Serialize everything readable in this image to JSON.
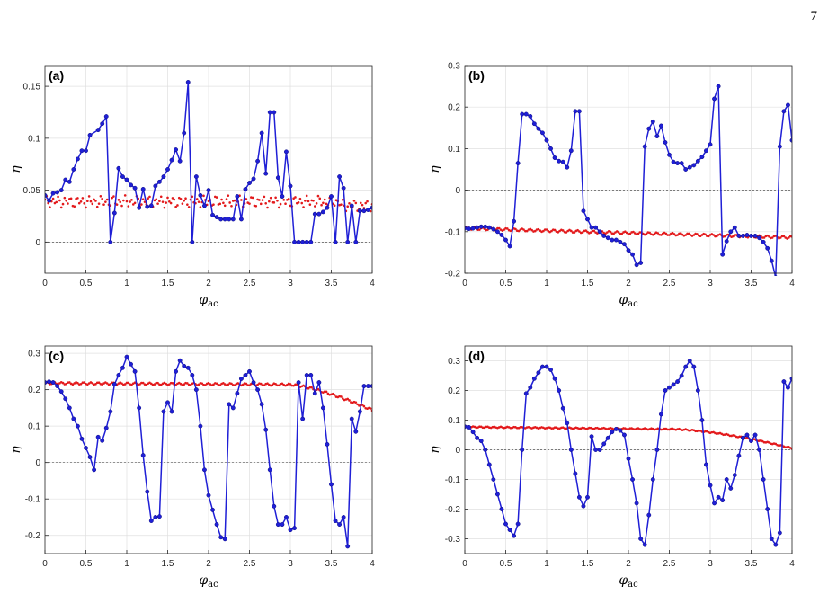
{
  "page_number": "7",
  "colors": {
    "series_blue": "#1f1fd6",
    "series_red": "#e31a1c",
    "grid": "#e0e0e0",
    "axes": "#262626"
  },
  "chart_data": [
    {
      "type": "line",
      "panel_label": "(a)",
      "xlabel": "φac",
      "ylabel": "η",
      "xlim": [
        0,
        4
      ],
      "ylim": [
        -0.03,
        0.17
      ],
      "xticks": [
        0,
        0.5,
        1,
        1.5,
        2,
        2.5,
        3,
        3.5,
        4
      ],
      "yticks": [
        0,
        0.05,
        0.1,
        0.15
      ],
      "zero_line": true,
      "grid": true,
      "series": [
        {
          "style": "blue-line-markers",
          "x": [
            0,
            0.05,
            0.1,
            0.15,
            0.2,
            0.25,
            0.3,
            0.35,
            0.4,
            0.45,
            0.5,
            0.55,
            0.65,
            0.7,
            0.75,
            0.8,
            0.85,
            0.9,
            0.95,
            1,
            1.05,
            1.1,
            1.15,
            1.2,
            1.25,
            1.3,
            1.35,
            1.4,
            1.45,
            1.5,
            1.55,
            1.6,
            1.65,
            1.7,
            1.75,
            1.8,
            1.85,
            1.9,
            1.95,
            2,
            2.05,
            2.1,
            2.15,
            2.2,
            2.25,
            2.3,
            2.35,
            2.4,
            2.45,
            2.5,
            2.55,
            2.6,
            2.65,
            2.7,
            2.75,
            2.8,
            2.85,
            2.9,
            2.95,
            3,
            3.05,
            3.1,
            3.15,
            3.2,
            3.25,
            3.3,
            3.35,
            3.4,
            3.45,
            3.5,
            3.55,
            3.6,
            3.65,
            3.7,
            3.75,
            3.8,
            3.85,
            3.9,
            3.95,
            4
          ],
          "y": [
            0.045,
            0.04,
            0.047,
            0.048,
            0.05,
            0.06,
            0.058,
            0.07,
            0.08,
            0.088,
            0.088,
            0.103,
            0.108,
            0.114,
            0.121,
            0.0,
            0.028,
            0.071,
            0.063,
            0.06,
            0.055,
            0.052,
            0.033,
            0.051,
            0.034,
            0.035,
            0.054,
            0.058,
            0.063,
            0.07,
            0.079,
            0.089,
            0.078,
            0.105,
            0.154,
            0.0,
            0.063,
            0.045,
            0.035,
            0.05,
            0.026,
            0.024,
            0.022,
            0.022,
            0.022,
            0.022,
            0.044,
            0.022,
            0.051,
            0.057,
            0.061,
            0.078,
            0.105,
            0.066,
            0.125,
            0.125,
            0.062,
            0.044,
            0.087,
            0.054,
            0.0,
            0.0,
            0.0,
            0.0,
            0.0,
            0.027,
            0.027,
            0.029,
            0.033,
            0.044,
            0.0,
            0.063,
            0.052,
            0.0,
            0.035,
            0.0,
            0.03,
            0.03,
            0.031,
            0.033
          ]
        }
      ]
    },
    {
      "type": "line",
      "panel_label": "(b)",
      "xlabel": "φac",
      "ylabel": "η",
      "xlim": [
        0,
        4
      ],
      "ylim": [
        -0.2,
        0.3
      ],
      "xticks": [
        0,
        0.5,
        1,
        1.5,
        2,
        2.5,
        3,
        3.5,
        4
      ],
      "yticks": [
        -0.2,
        -0.1,
        0,
        0.1,
        0.2,
        0.3
      ],
      "zero_line": true,
      "grid": true
    },
    {
      "type": "line",
      "panel_label": "(c)",
      "xlabel": "φac",
      "ylabel": "η",
      "xlim": [
        0,
        4
      ],
      "ylim": [
        -0.25,
        0.32
      ],
      "xticks": [
        0,
        0.5,
        1,
        1.5,
        2,
        2.5,
        3,
        3.5,
        4
      ],
      "yticks": [
        -0.2,
        -0.1,
        0,
        0.1,
        0.2,
        0.3
      ],
      "zero_line": true,
      "grid": true
    },
    {
      "type": "line",
      "panel_label": "(d)",
      "xlabel": "φac",
      "ylabel": "η",
      "xlim": [
        0,
        4
      ],
      "ylim": [
        -0.35,
        0.35
      ],
      "xticks": [
        0,
        0.5,
        1,
        1.5,
        2,
        2.5,
        3,
        3.5,
        4
      ],
      "yticks": [
        -0.3,
        -0.2,
        -0.1,
        0,
        0.1,
        0.2,
        0.3
      ],
      "zero_line": true,
      "grid": true
    }
  ]
}
